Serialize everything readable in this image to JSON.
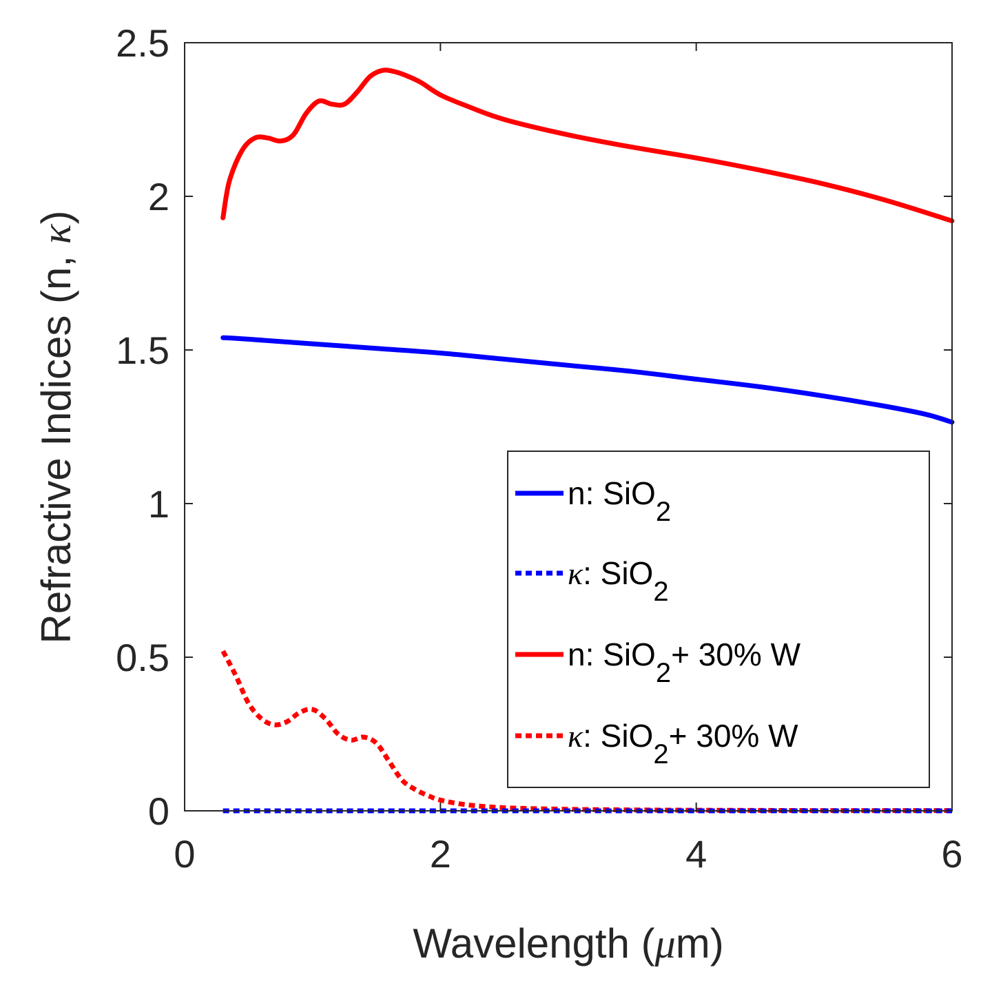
{
  "chart_data": {
    "type": "line",
    "title": "",
    "xlabel": "Wavelength (μm)",
    "xlabel_prefix": "Wavelength (",
    "xlabel_unit": "μ",
    "xlabel_suffix": "m)",
    "ylabel": "Refractive Indices (n, κ)",
    "ylabel_prefix": "Refractive Indices (n, ",
    "ylabel_symbol": "κ",
    "ylabel_suffix": ")",
    "xlim": [
      0,
      6
    ],
    "ylim": [
      0,
      2.5
    ],
    "xticks": [
      0,
      2,
      4,
      6
    ],
    "xtick_labels": [
      "0",
      "2",
      "4",
      "6"
    ],
    "yticks": [
      0,
      0.5,
      1,
      1.5,
      2,
      2.5
    ],
    "ytick_labels": [
      "0",
      "0.5",
      "1",
      "1.5",
      "2",
      "2.5"
    ],
    "grid": false,
    "legend_position": "bottom-right",
    "series": [
      {
        "name": "n: SiO2",
        "legend_prefix": "n: SiO",
        "legend_sub": "2",
        "legend_suffix": "",
        "color": "#0000ff",
        "style": "solid",
        "x": [
          0.3,
          0.5,
          1,
          1.5,
          2,
          2.5,
          3,
          3.5,
          4,
          4.5,
          5,
          5.5,
          5.8,
          6
        ],
        "y": [
          1.54,
          1.535,
          1.52,
          1.505,
          1.49,
          1.47,
          1.45,
          1.43,
          1.405,
          1.38,
          1.35,
          1.315,
          1.29,
          1.265
        ]
      },
      {
        "name": "κ: SiO2",
        "legend_prefix": "κ: SiO",
        "legend_sub": "2",
        "legend_suffix": "",
        "color": "#0000ff",
        "style": "dotted",
        "x": [
          0.3,
          1,
          2,
          3,
          4,
          5,
          6
        ],
        "y": [
          0,
          0,
          0,
          0,
          0,
          0,
          0
        ]
      },
      {
        "name": "n: SiO2+ 30% W",
        "legend_prefix": "n: SiO",
        "legend_sub": "2",
        "legend_suffix": "+ 30% W",
        "color": "#ff0000",
        "style": "solid",
        "x": [
          0.3,
          0.35,
          0.45,
          0.55,
          0.65,
          0.75,
          0.85,
          0.95,
          1.05,
          1.15,
          1.25,
          1.35,
          1.45,
          1.55,
          1.65,
          1.75,
          1.85,
          2.0,
          2.2,
          2.5,
          3.0,
          3.5,
          4.0,
          4.5,
          5.0,
          5.5,
          6.0
        ],
        "y": [
          1.93,
          2.05,
          2.15,
          2.19,
          2.19,
          2.18,
          2.2,
          2.27,
          2.31,
          2.3,
          2.3,
          2.34,
          2.39,
          2.41,
          2.405,
          2.39,
          2.37,
          2.33,
          2.295,
          2.25,
          2.2,
          2.16,
          2.125,
          2.085,
          2.04,
          1.985,
          1.92
        ]
      },
      {
        "name": "κ: SiO2+ 30% W",
        "legend_prefix": "κ: SiO",
        "legend_sub": "2",
        "legend_suffix": "+ 30% W",
        "color": "#ff0000",
        "style": "dotted",
        "x": [
          0.3,
          0.4,
          0.5,
          0.6,
          0.7,
          0.8,
          0.9,
          1.0,
          1.1,
          1.2,
          1.3,
          1.4,
          1.5,
          1.6,
          1.7,
          1.8,
          1.9,
          2.0,
          2.2,
          2.5,
          3.0,
          3.5,
          4.0,
          5.0,
          6.0
        ],
        "y": [
          0.52,
          0.44,
          0.35,
          0.3,
          0.28,
          0.29,
          0.32,
          0.33,
          0.3,
          0.25,
          0.23,
          0.24,
          0.22,
          0.16,
          0.1,
          0.07,
          0.05,
          0.035,
          0.02,
          0.01,
          0.005,
          0.003,
          0.002,
          0.001,
          0.001
        ]
      }
    ]
  }
}
